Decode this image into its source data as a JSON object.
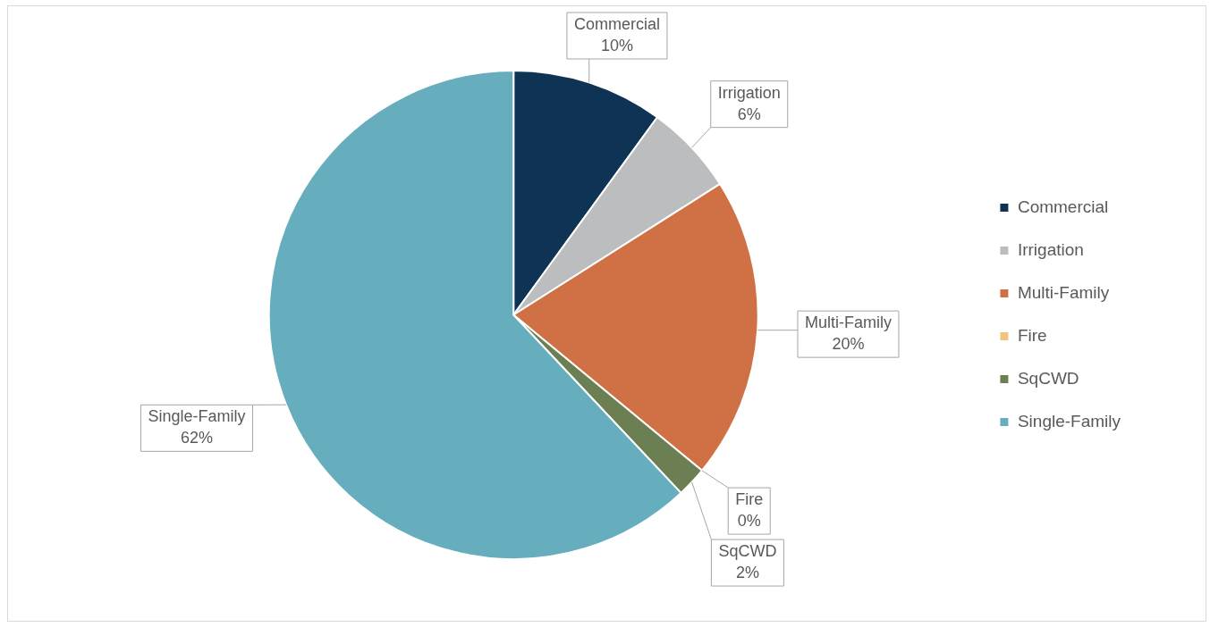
{
  "chart_data": {
    "type": "pie",
    "categories": [
      "Commercial",
      "Irrigation",
      "Multi-Family",
      "Fire",
      "SqCWD",
      "Single-Family"
    ],
    "values": [
      10,
      6,
      20,
      0,
      2,
      62
    ],
    "value_labels": [
      "10%",
      "6%",
      "20%",
      "0%",
      "2%",
      "62%"
    ],
    "colors": [
      "#0f3354",
      "#bcbdbf",
      "#cf7145",
      "#f2c57c",
      "#6b7f52",
      "#66aebd"
    ],
    "legend": "right"
  }
}
